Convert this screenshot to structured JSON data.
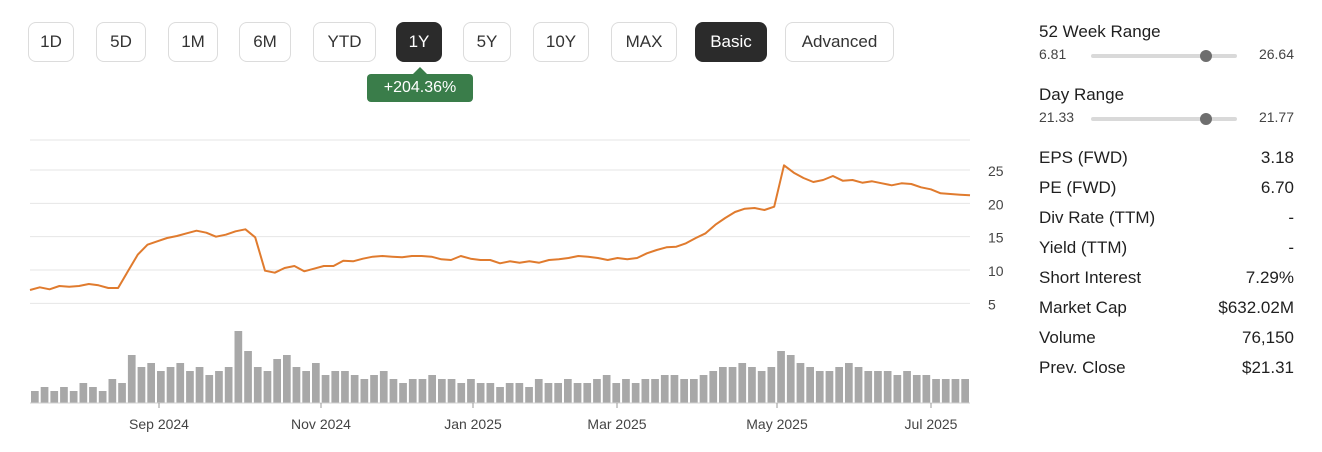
{
  "range_buttons": [
    {
      "label": "1D",
      "active": false
    },
    {
      "label": "5D",
      "active": false
    },
    {
      "label": "1M",
      "active": false
    },
    {
      "label": "6M",
      "active": false
    },
    {
      "label": "YTD",
      "active": false
    },
    {
      "label": "1Y",
      "active": true
    },
    {
      "label": "5Y",
      "active": false
    },
    {
      "label": "10Y",
      "active": false
    },
    {
      "label": "MAX",
      "active": false
    },
    {
      "label": "Basic",
      "active": true
    },
    {
      "label": "Advanced",
      "active": false
    }
  ],
  "change_badge": "+204.36%",
  "colors": {
    "line": "#e07b2e",
    "volume": "#a8a8a8",
    "badge": "#3a7d4a",
    "active_button": "#2b2b2b"
  },
  "stats": {
    "week52": {
      "title": "52 Week Range",
      "low": "6.81",
      "high": "26.64",
      "position": 0.79
    },
    "day": {
      "title": "Day Range",
      "low": "21.33",
      "high": "21.77",
      "position": 0.79
    },
    "rows": [
      {
        "label": "EPS (FWD)",
        "value": "3.18"
      },
      {
        "label": "PE (FWD)",
        "value": "6.70"
      },
      {
        "label": "Div Rate (TTM)",
        "value": "-"
      },
      {
        "label": "Yield (TTM)",
        "value": "-"
      },
      {
        "label": "Short Interest",
        "value": "7.29%"
      },
      {
        "label": "Market Cap",
        "value": "$632.02M"
      },
      {
        "label": "Volume",
        "value": "76,150"
      },
      {
        "label": "Prev. Close",
        "value": "$21.31"
      }
    ]
  },
  "chart_data": {
    "type": "line",
    "title": "",
    "xlabel": "",
    "ylabel": "",
    "x_tick_labels": [
      "Sep 2024",
      "Nov 2024",
      "Jan 2025",
      "Mar 2025",
      "May 2025",
      "Jul 2025"
    ],
    "y_ticks": [
      5,
      10,
      15,
      20,
      25
    ],
    "ylim": [
      2.5,
      29.5
    ],
    "grid": "horizontal",
    "series": [
      {
        "values": [
          7.0,
          7.4,
          7.1,
          7.6,
          7.5,
          7.6,
          7.9,
          7.7,
          7.3,
          7.3,
          9.8,
          12.3,
          13.8,
          14.3,
          14.8,
          15.1,
          15.5,
          15.9,
          15.6,
          15.0,
          15.3,
          15.8,
          16.1,
          14.9,
          9.9,
          9.6,
          10.3,
          10.6,
          9.8,
          10.2,
          10.6,
          10.6,
          11.4,
          11.3,
          11.7,
          12.0,
          12.1,
          12.0,
          11.9,
          12.1,
          12.1,
          12.0,
          11.6,
          11.5,
          12.1,
          11.7,
          11.5,
          11.5,
          11.0,
          11.3,
          11.1,
          11.3,
          11.1,
          11.5,
          11.6,
          11.8,
          12.1,
          12.0,
          11.8,
          11.5,
          11.8,
          11.6,
          11.8,
          12.5,
          13.0,
          13.4,
          13.5,
          14.0,
          14.8,
          15.5,
          16.8,
          17.8,
          18.7,
          19.2,
          19.3,
          19.0,
          19.5,
          25.7,
          24.6,
          23.8,
          23.2,
          23.5,
          24.1,
          23.4,
          23.5,
          23.1,
          23.3,
          23.0,
          22.7,
          23.0,
          22.9,
          22.4,
          22.1,
          21.5,
          21.4,
          21.3,
          21.2
        ],
        "volume": [
          3,
          4,
          3,
          4,
          3,
          5,
          4,
          3,
          6,
          5,
          12,
          9,
          10,
          8,
          9,
          10,
          8,
          9,
          7,
          8,
          9,
          18,
          13,
          9,
          8,
          11,
          12,
          9,
          8,
          10,
          7,
          8,
          8,
          7,
          6,
          7,
          8,
          6,
          5,
          6,
          6,
          7,
          6,
          6,
          5,
          6,
          5,
          5,
          4,
          5,
          5,
          4,
          6,
          5,
          5,
          6,
          5,
          5,
          6,
          7,
          5,
          6,
          5,
          6,
          6,
          7,
          7,
          6,
          6,
          7,
          8,
          9,
          9,
          10,
          9,
          8,
          9,
          13,
          12,
          10,
          9,
          8,
          8,
          9,
          10,
          9,
          8,
          8,
          8,
          7,
          8,
          7,
          7,
          6,
          6,
          6,
          6
        ]
      }
    ]
  }
}
